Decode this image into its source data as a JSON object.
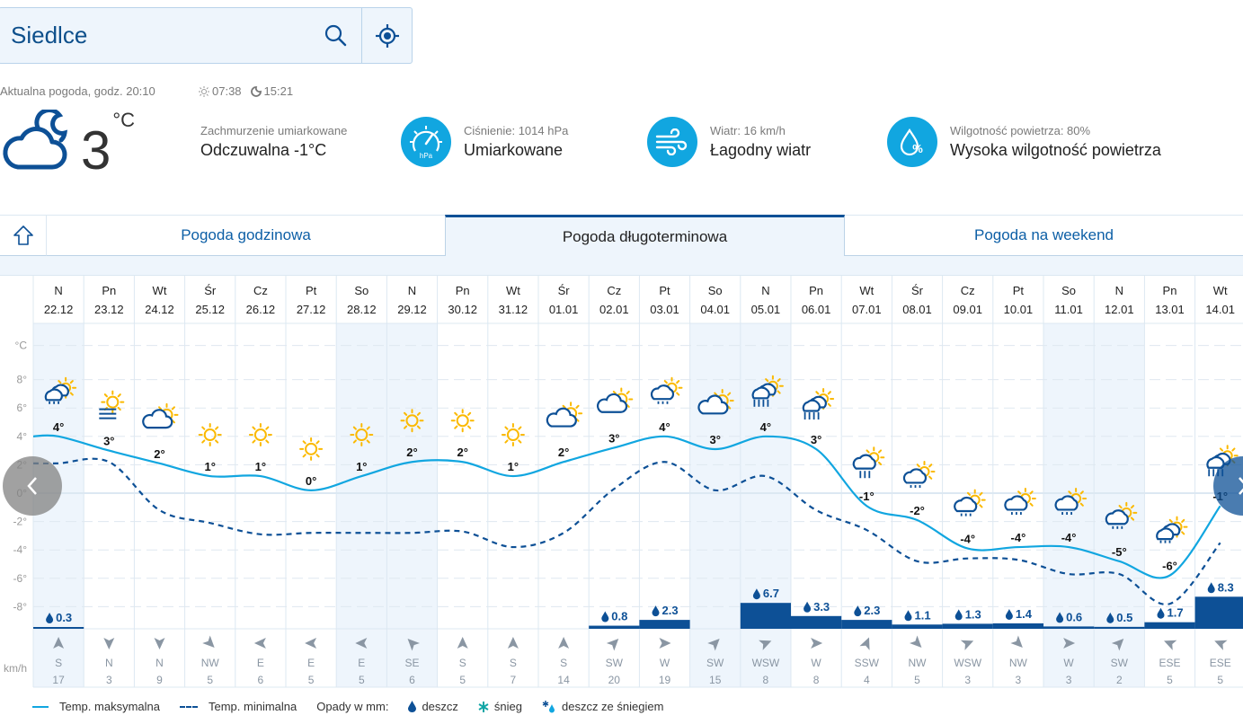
{
  "search": {
    "city": "Siedlce"
  },
  "current": {
    "time_label": "Aktualna pogoda, godz. 20:10",
    "sunrise": "07:38",
    "sunset": "15:21",
    "temp": "3",
    "unit": "°C",
    "condition": "Zachmurzenie umiarkowane",
    "feels_like": "Odczuwalna -1°C"
  },
  "stats": [
    {
      "icon": "pressure-gauge-icon",
      "small": "Ciśnienie: 1014 hPa",
      "large": "Umiarkowane",
      "badge": "hPa"
    },
    {
      "icon": "wind-icon",
      "small": "Wiatr: 16 km/h",
      "large": "Łagodny wiatr"
    },
    {
      "icon": "humidity-icon",
      "small": "Wilgotność powietrza: 80%",
      "large": "Wysoka wilgotność powietrza"
    }
  ],
  "tabs": [
    {
      "label": "Pogoda godzinowa",
      "active": false
    },
    {
      "label": "Pogoda długoterminowa",
      "active": true
    },
    {
      "label": "Pogoda na weekend",
      "active": false
    }
  ],
  "colors": {
    "accent": "#11a6e0",
    "primary": "#0d5096",
    "weekend_bg": "#eef5fc",
    "sun": "#fbb900"
  },
  "chart_data": {
    "type": "line",
    "y_unit_label": "°C",
    "wind_unit_label": "km/h",
    "ylim": [
      -10,
      10
    ],
    "yticks": [
      8,
      6,
      4,
      2,
      0,
      -2,
      -4,
      -6,
      -8
    ],
    "days": [
      {
        "day": "N",
        "date": "22.12",
        "weekend": true,
        "icon": "rain-sun",
        "label": "4°",
        "tmax": 4.0,
        "tmin": 2.1,
        "precip": 0.3,
        "wind_dir": "S",
        "wind": 17
      },
      {
        "day": "Pn",
        "date": "23.12",
        "weekend": false,
        "icon": "fog-sun",
        "label": "3°",
        "tmax": 3.0,
        "tmin": 2.2,
        "precip": null,
        "wind_dir": "N",
        "wind": 3
      },
      {
        "day": "Wt",
        "date": "24.12",
        "weekend": false,
        "icon": "cloud-sun",
        "label": "2°",
        "tmax": 2.1,
        "tmin": -1.2,
        "precip": null,
        "wind_dir": "N",
        "wind": 9
      },
      {
        "day": "Śr",
        "date": "25.12",
        "weekend": false,
        "icon": "sun",
        "label": "1°",
        "tmax": 1.2,
        "tmin": -2.1,
        "precip": null,
        "wind_dir": "NW",
        "wind": 5
      },
      {
        "day": "Cz",
        "date": "26.12",
        "weekend": false,
        "icon": "sun",
        "label": "1°",
        "tmax": 1.2,
        "tmin": -2.9,
        "precip": null,
        "wind_dir": "E",
        "wind": 6
      },
      {
        "day": "Pt",
        "date": "27.12",
        "weekend": false,
        "icon": "sun",
        "label": "0°",
        "tmax": 0.2,
        "tmin": -2.8,
        "precip": null,
        "wind_dir": "E",
        "wind": 5
      },
      {
        "day": "So",
        "date": "28.12",
        "weekend": true,
        "icon": "sun",
        "label": "1°",
        "tmax": 1.2,
        "tmin": -2.8,
        "precip": null,
        "wind_dir": "E",
        "wind": 5
      },
      {
        "day": "N",
        "date": "29.12",
        "weekend": true,
        "icon": "sun",
        "label": "2°",
        "tmax": 2.2,
        "tmin": -2.8,
        "precip": null,
        "wind_dir": "SE",
        "wind": 6
      },
      {
        "day": "Pn",
        "date": "30.12",
        "weekend": false,
        "icon": "sun",
        "label": "2°",
        "tmax": 2.2,
        "tmin": -2.7,
        "precip": null,
        "wind_dir": "S",
        "wind": 5
      },
      {
        "day": "Wt",
        "date": "31.12",
        "weekend": false,
        "icon": "sun",
        "label": "1°",
        "tmax": 1.2,
        "tmin": -3.8,
        "precip": null,
        "wind_dir": "S",
        "wind": 7
      },
      {
        "day": "Śr",
        "date": "01.01",
        "weekend": false,
        "icon": "cloud-sun",
        "label": "2°",
        "tmax": 2.2,
        "tmin": -2.8,
        "precip": null,
        "wind_dir": "S",
        "wind": 14
      },
      {
        "day": "Cz",
        "date": "02.01",
        "weekend": false,
        "icon": "cloud-sun",
        "label": "3°",
        "tmax": 3.2,
        "tmin": 0.3,
        "precip": 0.8,
        "wind_dir": "SW",
        "wind": 20
      },
      {
        "day": "Pt",
        "date": "03.01",
        "weekend": false,
        "icon": "drizzle-sun",
        "label": "4°",
        "tmax": 4.0,
        "tmin": 2.2,
        "precip": 2.3,
        "wind_dir": "W",
        "wind": 19
      },
      {
        "day": "So",
        "date": "04.01",
        "weekend": true,
        "icon": "cloud-sun",
        "label": "3°",
        "tmax": 3.1,
        "tmin": 0.2,
        "precip": null,
        "wind_dir": "SW",
        "wind": 15
      },
      {
        "day": "N",
        "date": "05.01",
        "weekend": true,
        "icon": "heavy-rain-sun",
        "label": "4°",
        "tmax": 4.0,
        "tmin": 1.2,
        "precip": 6.7,
        "wind_dir": "WSW",
        "wind": 8
      },
      {
        "day": "Pn",
        "date": "06.01",
        "weekend": false,
        "icon": "heavy-rain-sun",
        "label": "3°",
        "tmax": 3.1,
        "tmin": -1.2,
        "precip": 3.3,
        "wind_dir": "W",
        "wind": 8
      },
      {
        "day": "Wt",
        "date": "07.01",
        "weekend": false,
        "icon": "rain-cloud-sun",
        "label": "-1°",
        "tmax": -0.9,
        "tmin": -2.6,
        "precip": 2.3,
        "wind_dir": "SSW",
        "wind": 4
      },
      {
        "day": "Śr",
        "date": "08.01",
        "weekend": false,
        "icon": "drizzle-sun",
        "label": "-2°",
        "tmax": -1.9,
        "tmin": -4.8,
        "precip": 1.1,
        "wind_dir": "NW",
        "wind": 5
      },
      {
        "day": "Cz",
        "date": "09.01",
        "weekend": false,
        "icon": "drizzle-sun",
        "label": "-4°",
        "tmax": -3.9,
        "tmin": -4.6,
        "precip": 1.3,
        "wind_dir": "WSW",
        "wind": 3
      },
      {
        "day": "Pt",
        "date": "10.01",
        "weekend": false,
        "icon": "drizzle-sun",
        "label": "-4°",
        "tmax": -3.8,
        "tmin": -4.7,
        "precip": 1.4,
        "wind_dir": "NW",
        "wind": 3
      },
      {
        "day": "So",
        "date": "11.01",
        "weekend": true,
        "icon": "drizzle-sun",
        "label": "-4°",
        "tmax": -3.8,
        "tmin": -5.7,
        "precip": 0.6,
        "wind_dir": "W",
        "wind": 3
      },
      {
        "day": "N",
        "date": "12.01",
        "weekend": true,
        "icon": "drizzle-sun",
        "label": "-5°",
        "tmax": -4.8,
        "tmin": -5.7,
        "precip": 0.5,
        "wind_dir": "SW",
        "wind": 2
      },
      {
        "day": "Pn",
        "date": "13.01",
        "weekend": false,
        "icon": "rain-sun",
        "label": "-6°",
        "tmax": -5.8,
        "tmin": -7.8,
        "precip": 1.7,
        "wind_dir": "ESE",
        "wind": 5
      },
      {
        "day": "Wt",
        "date": "14.01",
        "weekend": false,
        "icon": "heavy-rain-sun",
        "label": "-1°",
        "tmax": -0.9,
        "tmin": -3.5,
        "precip": 8.3,
        "wind_dir": "ESE",
        "wind": 5
      }
    ],
    "legend": {
      "max": "Temp. maksymalna",
      "min": "Temp. minimalna",
      "precip_title": "Opady w mm:",
      "rain": "deszcz",
      "snow": "śnieg",
      "sleet": "deszcz ze śniegiem"
    }
  }
}
